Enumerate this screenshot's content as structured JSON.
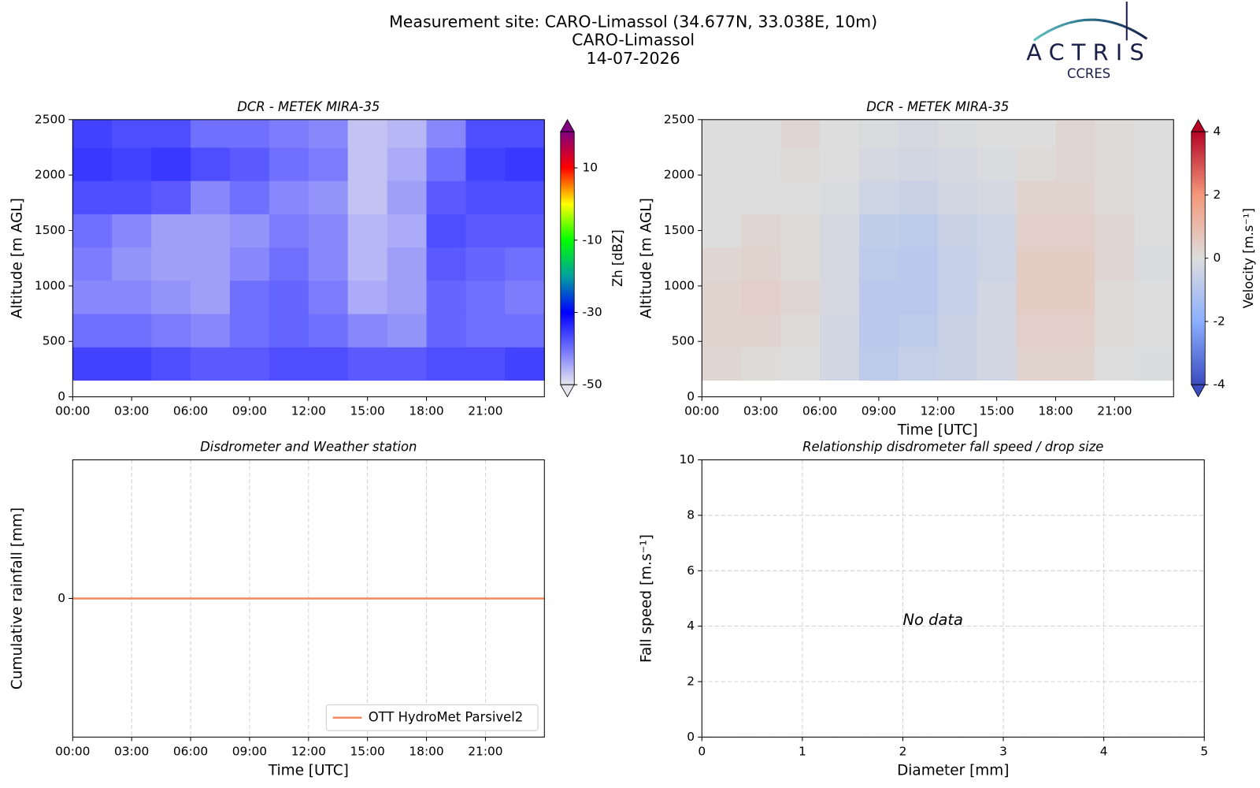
{
  "header": {
    "title": [
      "Measurement site: CARO-Limassol (34.677N, 33.038E, 10m)",
      "CARO-Limassol",
      "14-07-2026"
    ],
    "logo": {
      "name": "ACTRIS",
      "subtitle": "CCRES"
    }
  },
  "chart_data": [
    {
      "type": "heatmap",
      "title": "DCR - METEK MIRA-35",
      "ylabel": "Altitude [m AGL]",
      "x": [
        0,
        2,
        4,
        6,
        8,
        10,
        12,
        14,
        16,
        18,
        20,
        22,
        24
      ],
      "y": [
        150,
        450,
        750,
        1050,
        1350,
        1650,
        1950,
        2250,
        2500
      ],
      "z": [
        [
          -36,
          -36,
          -37,
          -38,
          -38,
          -37,
          -37,
          -38,
          -38,
          -37,
          -37,
          -36
        ],
        [
          -40,
          -40,
          -41,
          -42,
          -40,
          -39,
          -40,
          -42,
          -43,
          -39,
          -40,
          -40
        ],
        [
          -42,
          -42,
          -43,
          -44,
          -40,
          -39,
          -41,
          -45,
          -44,
          -39,
          -40,
          -41
        ],
        [
          -41,
          -43,
          -44,
          -44,
          -42,
          -40,
          -42,
          -46,
          -44,
          -38,
          -39,
          -40
        ],
        [
          -40,
          -42,
          -44,
          -44,
          -43,
          -41,
          -42,
          -46,
          -45,
          -37,
          -38,
          -38
        ],
        [
          -37,
          -37,
          -38,
          -42,
          -40,
          -42,
          -43,
          -47,
          -44,
          -38,
          -37,
          -37
        ],
        [
          -35,
          -36,
          -35,
          -37,
          -38,
          -40,
          -41,
          -47,
          -45,
          -40,
          -36,
          -35
        ],
        [
          -36,
          -37,
          -37,
          -40,
          -40,
          -41,
          -42,
          -47,
          -46,
          -42,
          -37,
          -37
        ]
      ],
      "xlim": [
        0,
        24
      ],
      "ylim": [
        0,
        2500
      ],
      "xticks": [
        {
          "value": 0,
          "label": "00:00"
        },
        {
          "value": 3,
          "label": "03:00"
        },
        {
          "value": 6,
          "label": "06:00"
        },
        {
          "value": 9,
          "label": "09:00"
        },
        {
          "value": 12,
          "label": "12:00"
        },
        {
          "value": 15,
          "label": "15:00"
        },
        {
          "value": 18,
          "label": "18:00"
        },
        {
          "value": 21,
          "label": "21:00"
        }
      ],
      "yticks": [
        0,
        500,
        1000,
        1500,
        2000,
        2500
      ],
      "colorbar": {
        "label": "Zh [dBZ]",
        "lim": [
          -50,
          20
        ],
        "ticks": [
          -50,
          -30,
          -10,
          10
        ],
        "colorscale": [
          {
            "value": -50,
            "color": "#e6e6ee"
          },
          {
            "value": -40,
            "color": "#7070ff"
          },
          {
            "value": -30,
            "color": "#0000ff"
          },
          {
            "value": -20,
            "color": "#00a0a0"
          },
          {
            "value": -10,
            "color": "#00ff00"
          },
          {
            "value": 0,
            "color": "#ffff00"
          },
          {
            "value": 10,
            "color": "#ff0000"
          },
          {
            "value": 20,
            "color": "#800080"
          }
        ]
      }
    },
    {
      "type": "heatmap",
      "title": "DCR - METEK MIRA-35",
      "ylabel": "Altitude [m AGL]",
      "xlabel": "Time [UTC]",
      "x": [
        0,
        2,
        4,
        6,
        8,
        10,
        12,
        14,
        16,
        18,
        20,
        22,
        24
      ],
      "y": [
        150,
        450,
        750,
        1050,
        1350,
        1650,
        1950,
        2250,
        2500
      ],
      "z": [
        [
          0.2,
          0.1,
          0,
          -0.3,
          -0.8,
          -0.6,
          -0.5,
          -0.3,
          0.3,
          0.3,
          0,
          -0.1
        ],
        [
          0.3,
          0.3,
          0.1,
          -0.3,
          -0.9,
          -0.8,
          -0.5,
          -0.3,
          0.4,
          0.4,
          0.1,
          0
        ],
        [
          0.3,
          0.4,
          0.2,
          -0.2,
          -0.9,
          -0.9,
          -0.6,
          -0.3,
          0.5,
          0.5,
          0.1,
          0
        ],
        [
          0.2,
          0.3,
          0.1,
          -0.2,
          -0.8,
          -0.9,
          -0.6,
          -0.4,
          0.5,
          0.5,
          0.2,
          -0.1
        ],
        [
          0,
          0.2,
          0.1,
          -0.2,
          -0.7,
          -0.8,
          -0.5,
          -0.4,
          0.4,
          0.4,
          0.2,
          0
        ],
        [
          0,
          0,
          0,
          -0.1,
          -0.4,
          -0.5,
          -0.3,
          -0.2,
          0.3,
          0.3,
          0.1,
          0
        ],
        [
          0,
          0,
          0.1,
          0,
          -0.2,
          -0.3,
          -0.2,
          -0.1,
          0.1,
          0.2,
          0.1,
          0
        ],
        [
          0,
          0,
          0.2,
          0,
          -0.1,
          -0.2,
          -0.1,
          0,
          0,
          0.2,
          0.1,
          0
        ]
      ],
      "xlim": [
        0,
        24
      ],
      "ylim": [
        0,
        2500
      ],
      "xticks": [
        {
          "value": 0,
          "label": "00:00"
        },
        {
          "value": 3,
          "label": "03:00"
        },
        {
          "value": 6,
          "label": "06:00"
        },
        {
          "value": 9,
          "label": "09:00"
        },
        {
          "value": 12,
          "label": "12:00"
        },
        {
          "value": 15,
          "label": "15:00"
        },
        {
          "value": 18,
          "label": "18:00"
        },
        {
          "value": 21,
          "label": "21:00"
        }
      ],
      "yticks": [
        0,
        500,
        1000,
        1500,
        2000,
        2500
      ],
      "colorbar": {
        "label": "Velocity [m.s⁻¹]",
        "lim": [
          -4,
          4
        ],
        "ticks": [
          -4,
          -2,
          0,
          2,
          4
        ],
        "colorscale": [
          {
            "value": -4,
            "color": "#3b4cc0"
          },
          {
            "value": -2,
            "color": "#8caffe"
          },
          {
            "value": 0,
            "color": "#dddddd"
          },
          {
            "value": 2,
            "color": "#f4987a"
          },
          {
            "value": 4,
            "color": "#b40426"
          }
        ]
      }
    },
    {
      "type": "line",
      "title": "Disdrometer and Weather station",
      "xlabel": "Time [UTC]",
      "ylabel": "Cumulative rainfall [mm]",
      "x": [
        0,
        24
      ],
      "series": [
        {
          "name": "OTT HydroMet Parsivel2",
          "color": "#f4895f",
          "values": [
            0,
            0
          ]
        }
      ],
      "xlim": [
        0,
        24
      ],
      "ylim": [
        -0.05,
        0.05
      ],
      "xticks": [
        {
          "value": 0,
          "label": "00:00"
        },
        {
          "value": 3,
          "label": "03:00"
        },
        {
          "value": 6,
          "label": "06:00"
        },
        {
          "value": 9,
          "label": "09:00"
        },
        {
          "value": 12,
          "label": "12:00"
        },
        {
          "value": 15,
          "label": "15:00"
        },
        {
          "value": 18,
          "label": "18:00"
        },
        {
          "value": 21,
          "label": "21:00"
        }
      ],
      "yticks": [
        0
      ],
      "grid": "x",
      "legend": "lower right"
    },
    {
      "type": "scatter",
      "title": "Relationship disdrometer fall speed / drop size",
      "xlabel": "Diameter [mm]",
      "ylabel": "Fall speed [m.s⁻¹]",
      "x": [],
      "y": [],
      "xlim": [
        0,
        5
      ],
      "ylim": [
        0,
        10
      ],
      "xticks": [
        0,
        1,
        2,
        3,
        4,
        5
      ],
      "yticks": [
        0,
        2,
        4,
        6,
        8,
        10
      ],
      "grid": "both",
      "annotations": [
        "No data"
      ]
    }
  ]
}
